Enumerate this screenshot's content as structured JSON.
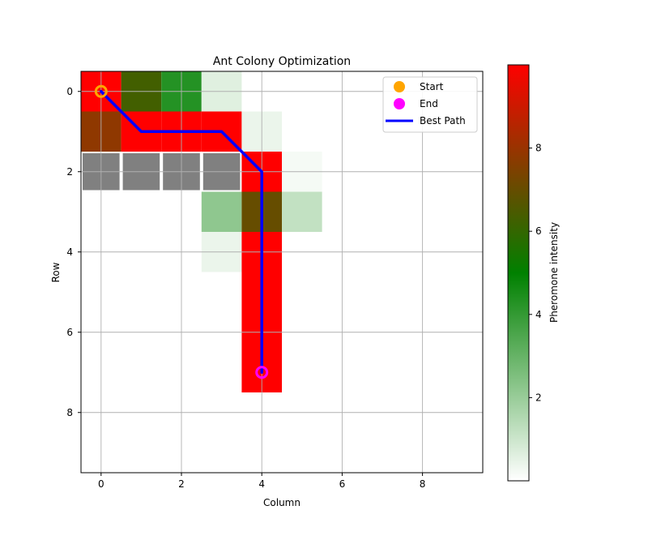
{
  "chart_data": {
    "type": "heatmap",
    "title": "Ant Colony Optimization",
    "xlabel": "Column",
    "ylabel": "Row",
    "grid_size": [
      10,
      10
    ],
    "xlim": [
      -0.5,
      9.5
    ],
    "ylim": [
      9.5,
      -0.5
    ],
    "x_ticks": [
      0,
      2,
      4,
      6,
      8
    ],
    "y_ticks": [
      0,
      2,
      4,
      6,
      8
    ],
    "grid": true,
    "colorbar": {
      "label": "Pheromone intensity",
      "range": [
        0,
        10
      ],
      "ticks": [
        2,
        4,
        6,
        8
      ],
      "stops": [
        "#ffffff",
        "#008000",
        "#ff0000"
      ]
    },
    "pheromone_cells": [
      {
        "row": 0,
        "col": 0,
        "value": 10
      },
      {
        "row": 0,
        "col": 1,
        "value": 6.3
      },
      {
        "row": 0,
        "col": 2,
        "value": 4.3
      },
      {
        "row": 0,
        "col": 3,
        "value": 0.6
      },
      {
        "row": 1,
        "col": 0,
        "value": 7.8
      },
      {
        "row": 1,
        "col": 1,
        "value": 10
      },
      {
        "row": 1,
        "col": 2,
        "value": 10
      },
      {
        "row": 1,
        "col": 3,
        "value": 10
      },
      {
        "row": 1,
        "col": 4,
        "value": 0.4
      },
      {
        "row": 2,
        "col": 4,
        "value": 10
      },
      {
        "row": 2,
        "col": 5,
        "value": 0.2
      },
      {
        "row": 3,
        "col": 3,
        "value": 2.2
      },
      {
        "row": 3,
        "col": 4,
        "value": 7.0
      },
      {
        "row": 3,
        "col": 5,
        "value": 1.2
      },
      {
        "row": 4,
        "col": 3,
        "value": 0.4
      },
      {
        "row": 4,
        "col": 4,
        "value": 10
      },
      {
        "row": 5,
        "col": 4,
        "value": 10
      },
      {
        "row": 6,
        "col": 4,
        "value": 10
      },
      {
        "row": 7,
        "col": 4,
        "value": 10
      }
    ],
    "obstacles": [
      {
        "row": 2,
        "col": 0
      },
      {
        "row": 2,
        "col": 1
      },
      {
        "row": 2,
        "col": 2
      },
      {
        "row": 2,
        "col": 3
      }
    ],
    "obstacle_color": "#808080",
    "start": {
      "row": 0,
      "col": 0,
      "color": "#ffa500"
    },
    "end": {
      "row": 7,
      "col": 4,
      "color": "#ff00ff"
    },
    "best_path": {
      "color": "#0000ff",
      "points": [
        [
          0,
          0
        ],
        [
          1,
          1
        ],
        [
          1,
          2
        ],
        [
          1,
          3
        ],
        [
          2,
          4
        ],
        [
          3,
          4
        ],
        [
          4,
          4
        ],
        [
          5,
          4
        ],
        [
          6,
          4
        ],
        [
          7,
          4
        ]
      ]
    },
    "legend": {
      "position": "top-right",
      "entries": [
        "Start",
        "End",
        "Best Path"
      ]
    }
  }
}
